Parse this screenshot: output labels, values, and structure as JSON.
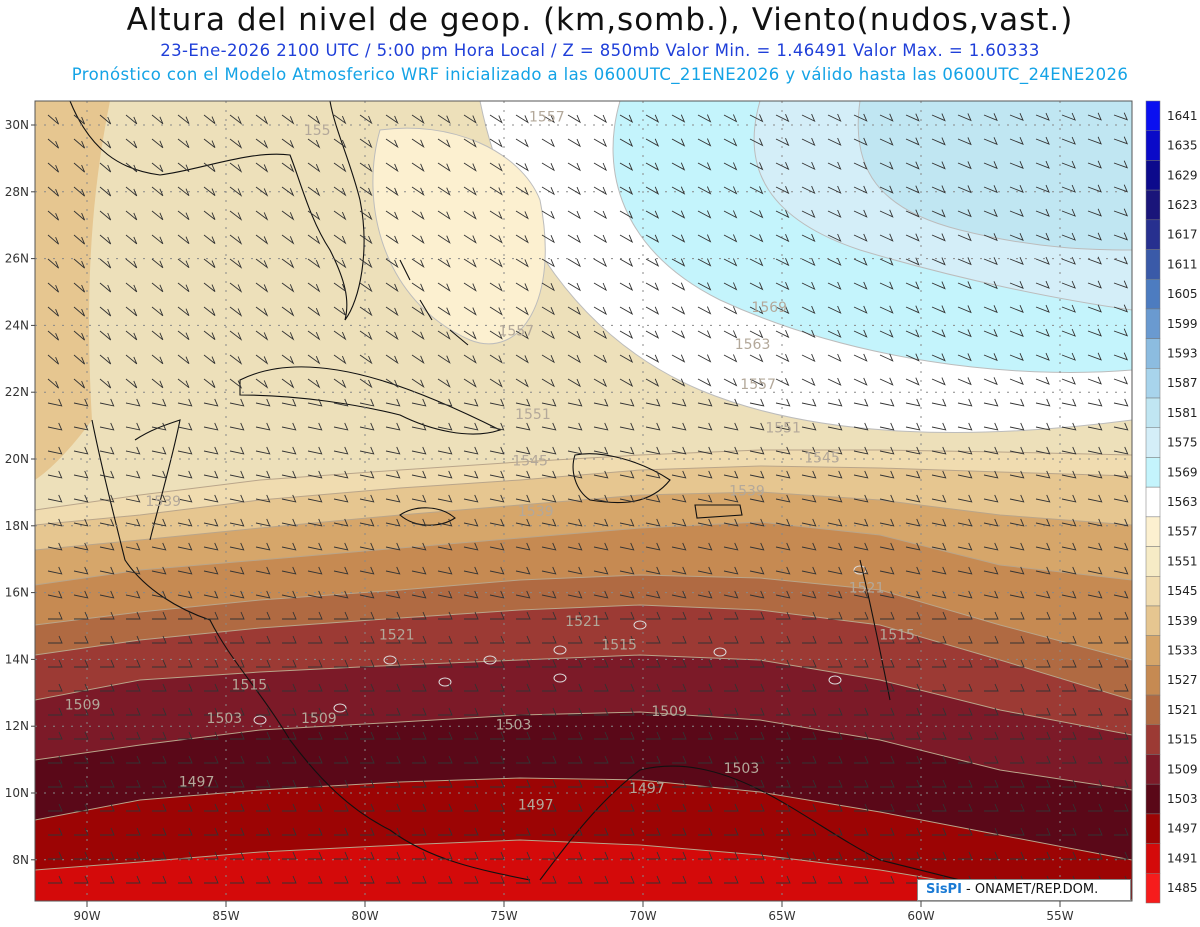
{
  "header": {
    "title": "Altura del nivel de geop. (km,somb.), Viento(nudos,vast.)",
    "subtitle_line1": "23-Ene-2026  2100 UTC / 5:00 pm Hora Local / Z = 850mb     Valor Min. = 1.46491  Valor Max. = 1.60333",
    "subtitle_line2": "Pronóstico con el Modelo Atmosferico WRF inicializado a las 0600UTC_21ENE2026 y válido hasta las  0600UTC_24ENE2026"
  },
  "map": {
    "lon_labels": [
      "90W",
      "85W",
      "80W",
      "75W",
      "70W",
      "65W",
      "60W",
      "55W"
    ],
    "lat_labels": [
      "30N",
      "28N",
      "26N",
      "24N",
      "22N",
      "20N",
      "18N",
      "16N",
      "14N",
      "12N",
      "10N",
      "8N"
    ],
    "contour_labels": [
      {
        "text": "1557",
        "lon": -74.1,
        "lat": 30.1
      },
      {
        "text": "155",
        "lon": -82.2,
        "lat": 29.7
      },
      {
        "text": "1569",
        "lon": -66.1,
        "lat": 24.4
      },
      {
        "text": "1563",
        "lon": -66.7,
        "lat": 23.3
      },
      {
        "text": "1557",
        "lon": -66.5,
        "lat": 22.1
      },
      {
        "text": "1551",
        "lon": -65.6,
        "lat": 20.8
      },
      {
        "text": "1545",
        "lon": -64.2,
        "lat": 19.9
      },
      {
        "text": "1551",
        "lon": -74.6,
        "lat": 21.2
      },
      {
        "text": "1557",
        "lon": -75.2,
        "lat": 23.7
      },
      {
        "text": "1545",
        "lon": -74.7,
        "lat": 19.8
      },
      {
        "text": "1539",
        "lon": -66.9,
        "lat": 18.9
      },
      {
        "text": "1539",
        "lon": -74.5,
        "lat": 18.3
      },
      {
        "text": "1539",
        "lon": -87.9,
        "lat": 18.6
      },
      {
        "text": "1521",
        "lon": -62.6,
        "lat": 16.0
      },
      {
        "text": "1521",
        "lon": -79.5,
        "lat": 14.6
      },
      {
        "text": "1521",
        "lon": -72.8,
        "lat": 15.0
      },
      {
        "text": "1515",
        "lon": -61.5,
        "lat": 14.6
      },
      {
        "text": "1515",
        "lon": -71.5,
        "lat": 14.3
      },
      {
        "text": "1515",
        "lon": -84.8,
        "lat": 13.1
      },
      {
        "text": "1509",
        "lon": -90.8,
        "lat": 12.5
      },
      {
        "text": "1509",
        "lon": -82.3,
        "lat": 12.1
      },
      {
        "text": "1509",
        "lon": -69.7,
        "lat": 12.3
      },
      {
        "text": "1503",
        "lon": -85.7,
        "lat": 12.1
      },
      {
        "text": "1503",
        "lon": -75.3,
        "lat": 11.9
      },
      {
        "text": "1503",
        "lon": -67.1,
        "lat": 10.6
      },
      {
        "text": "1497",
        "lon": -86.7,
        "lat": 10.2
      },
      {
        "text": "1497",
        "lon": -74.5,
        "lat": 9.5
      },
      {
        "text": "1497",
        "lon": -70.5,
        "lat": 10.0
      }
    ]
  },
  "legend": {
    "levels": [
      {
        "label": "1641",
        "color": "#0a10f0"
      },
      {
        "label": "1635",
        "color": "#0a0ac8"
      },
      {
        "label": "1629",
        "color": "#0c0a8c"
      },
      {
        "label": "1623",
        "color": "#1a157a"
      },
      {
        "label": "1617",
        "color": "#27308f"
      },
      {
        "label": "1611",
        "color": "#3a5aa8"
      },
      {
        "label": "1605",
        "color": "#4d7cc0"
      },
      {
        "label": "1599",
        "color": "#6a9ad0"
      },
      {
        "label": "1593",
        "color": "#8cbce0"
      },
      {
        "label": "1587",
        "color": "#a8d4ec"
      },
      {
        "label": "1581",
        "color": "#c0e6f2"
      },
      {
        "label": "1575",
        "color": "#d4eef8"
      },
      {
        "label": "1569",
        "color": "#c4f4fc"
      },
      {
        "label": "1563",
        "color": "#ffffff"
      },
      {
        "label": "1557",
        "color": "#fcf0d0"
      },
      {
        "label": "1551",
        "color": "#f6ebc6"
      },
      {
        "label": "1545",
        "color": "#f0dcb0"
      },
      {
        "label": "1539",
        "color": "#e6c690"
      },
      {
        "label": "1533",
        "color": "#d6a66a"
      },
      {
        "label": "1527",
        "color": "#c68a52"
      },
      {
        "label": "1521",
        "color": "#b06a42"
      },
      {
        "label": "1515",
        "color": "#9c3a34"
      },
      {
        "label": "1509",
        "color": "#7c1a28"
      },
      {
        "label": "1503",
        "color": "#5a0818"
      },
      {
        "label": "1497",
        "color": "#9c0404"
      },
      {
        "label": "1491",
        "color": "#d40a0a"
      },
      {
        "label": "1485",
        "color": "#f61c1c"
      }
    ]
  },
  "credit": {
    "brand": "SisPI",
    "text": " - ONAMET/REP.DOM."
  }
}
